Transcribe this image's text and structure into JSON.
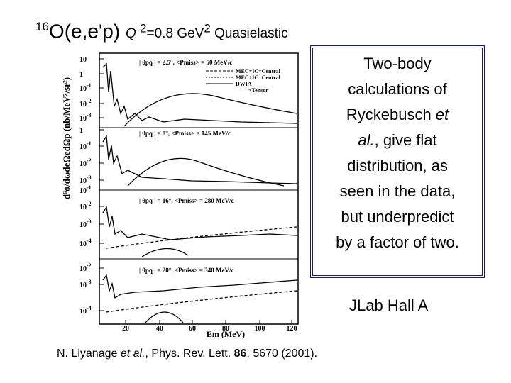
{
  "title": {
    "superscript": "16",
    "main": "O(e,e'p)",
    "q": "Q",
    "q_exp": "2",
    "q_rest": "=0.8 GeV",
    "gev_exp": "2",
    "tail": "Quasielastic"
  },
  "textbox": {
    "lines": [
      [
        {
          "text": "Two-body"
        }
      ],
      [
        {
          "text": "calculations of"
        }
      ],
      [
        {
          "text": "Ryckebusch "
        },
        {
          "text": "et",
          "italic": true
        }
      ],
      [
        {
          "text": "al.",
          "italic": true
        },
        {
          "text": ", give flat"
        }
      ],
      [
        {
          "text": "distribution, as"
        }
      ],
      [
        {
          "text": "seen in the data,"
        }
      ],
      [
        {
          "text": "but underpredict"
        }
      ],
      [
        {
          "text": "by a factor of two."
        }
      ]
    ]
  },
  "lab": "JLab Hall A",
  "reference": [
    {
      "text": "N. Liyanage "
    },
    {
      "text": "et al.",
      "italic": true
    },
    {
      "text": ", Phys. Rev. Lett. "
    },
    {
      "text": "86",
      "bold": true
    },
    {
      "text": ", 5670 (2001)."
    }
  ],
  "figure": {
    "y_label": "d⁶σ/dωdeΩedΩp (nb/MeV²/sr²)",
    "x_label": "Em (MeV)",
    "x_ticks": [
      "20",
      "40",
      "60",
      "80",
      "100",
      "120"
    ],
    "legend": [
      "MEC+IC+Central",
      "MEC+IC+Central",
      "DWIA",
      "+Tensor"
    ],
    "panels": [
      {
        "label": "| θpq | = 2.5°,  <Pmiss> = 50 MeV/c",
        "y_ticks": [
          {
            "base": "10",
            "exp": ""
          },
          {
            "base": "1",
            "exp": ""
          },
          {
            "base": "10",
            "exp": "-1"
          },
          {
            "base": "10",
            "exp": "-2"
          },
          {
            "base": "10",
            "exp": "-3"
          }
        ]
      },
      {
        "label": "| θpq | = 8°,  <Pmiss> = 145 MeV/c",
        "y_ticks": [
          {
            "base": "1",
            "exp": ""
          },
          {
            "base": "10",
            "exp": "-1"
          },
          {
            "base": "10",
            "exp": "-2"
          },
          {
            "base": "10",
            "exp": "-3"
          }
        ]
      },
      {
        "label": "| θpq | = 16°,  <Pmiss> = 280 MeV/c",
        "y_ticks": [
          {
            "base": "10",
            "exp": "-1"
          },
          {
            "base": "10",
            "exp": "-2"
          },
          {
            "base": "10",
            "exp": "-3"
          },
          {
            "base": "10",
            "exp": "-4"
          }
        ]
      },
      {
        "label": "| θpq | = 20°,  <Pmiss> = 340 MeV/c",
        "y_ticks": [
          {
            "base": "10",
            "exp": "-2"
          },
          {
            "base": "10",
            "exp": "-3"
          },
          {
            "base": "10",
            "exp": "-4"
          }
        ]
      }
    ]
  }
}
